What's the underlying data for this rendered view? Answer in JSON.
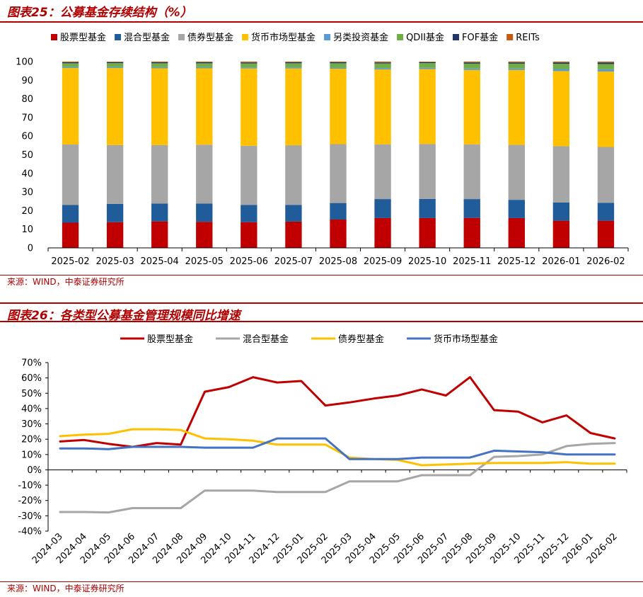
{
  "figure1": {
    "title": "图表25：公募基金存续结构（%）",
    "source": "来源：WIND，中泰证券研究所"
  },
  "figure2": {
    "title": "图表26：各类型公募基金管理规模同比增速",
    "source": "来源：WIND，中泰证券研究所"
  },
  "chart_data": [
    {
      "type": "bar",
      "stacked": true,
      "title": "图表25：公募基金存续结构（%）",
      "xlabel": "",
      "ylabel": "",
      "ylim": [
        0,
        100
      ],
      "yticks": [
        "0",
        "10",
        "20",
        "30",
        "40",
        "50",
        "60",
        "70",
        "80",
        "90",
        "100"
      ],
      "categories": [
        "2025-02",
        "2025-03",
        "2025-04",
        "2025-05",
        "2025-06",
        "2025-07",
        "2025-08",
        "2025-09",
        "2025-10",
        "2025-11",
        "2025-12",
        "2026-01",
        "2026-02"
      ],
      "legend_position": "top",
      "series": [
        {
          "name": "股票型基金",
          "color": "#C00000",
          "values": [
            13.5,
            13.8,
            14.2,
            14.0,
            13.8,
            14.1,
            15.2,
            16.0,
            16.0,
            16.1,
            16.0,
            14.6,
            14.6
          ]
        },
        {
          "name": "混合型基金",
          "color": "#1F5C99",
          "values": [
            9.5,
            9.8,
            9.6,
            9.8,
            9.2,
            9.0,
            8.9,
            10.2,
            10.3,
            10.1,
            9.8,
            9.8,
            9.6
          ]
        },
        {
          "name": "债券型基金",
          "color": "#A6A6A6",
          "values": [
            32.5,
            31.6,
            31.4,
            31.6,
            31.8,
            32.0,
            31.6,
            29.4,
            29.5,
            29.4,
            29.5,
            30.2,
            30.0
          ]
        },
        {
          "name": "货币市场型基金",
          "color": "#FFC000",
          "values": [
            41.0,
            41.3,
            41.2,
            41.0,
            41.5,
            41.2,
            40.5,
            40.2,
            40.2,
            39.9,
            40.2,
            40.3,
            40.5
          ]
        },
        {
          "name": "另类投资基金",
          "color": "#5B9BD5",
          "values": [
            0.6,
            0.6,
            0.6,
            0.6,
            0.6,
            0.6,
            0.6,
            0.7,
            0.7,
            0.8,
            0.8,
            1.1,
            1.2
          ]
        },
        {
          "name": "QDII基金",
          "color": "#70AD47",
          "values": [
            2.0,
            2.1,
            2.1,
            2.1,
            2.1,
            2.2,
            2.3,
            2.5,
            2.5,
            2.6,
            2.6,
            2.8,
            2.8
          ]
        },
        {
          "name": "FOF基金",
          "color": "#203864",
          "values": [
            0.5,
            0.5,
            0.5,
            0.5,
            0.5,
            0.5,
            0.5,
            0.5,
            0.5,
            0.6,
            0.6,
            0.7,
            0.8
          ]
        },
        {
          "name": "REITs",
          "color": "#C55A11",
          "values": [
            0.4,
            0.3,
            0.4,
            0.4,
            0.5,
            0.4,
            0.4,
            0.5,
            0.3,
            0.5,
            0.5,
            0.5,
            0.5
          ]
        }
      ]
    },
    {
      "type": "line",
      "title": "图表26：各类型公募基金管理规模同比增速",
      "xlabel": "",
      "ylabel": "",
      "ylim": [
        -40,
        70
      ],
      "yticks": [
        "-40%",
        "-30%",
        "-20%",
        "-10%",
        "0%",
        "10%",
        "20%",
        "30%",
        "40%",
        "50%",
        "60%",
        "70%"
      ],
      "categories": [
        "2024-03",
        "2024-04",
        "2024-05",
        "2024-06",
        "2024-07",
        "2024-08",
        "2024-09",
        "2024-10",
        "2024-11",
        "2024-12",
        "2025-01",
        "2025-02",
        "2025-03",
        "2025-04",
        "2025-05",
        "2025-06",
        "2025-07",
        "2025-08",
        "2025-09",
        "2025-10",
        "2025-11",
        "2025-12",
        "2026-01",
        "2026-02"
      ],
      "legend_position": "top",
      "series": [
        {
          "name": "股票型基金",
          "color": "#C00000",
          "values": [
            18.5,
            19.5,
            17.0,
            15.0,
            17.5,
            16.5,
            51.0,
            54.0,
            60.5,
            57.0,
            58.0,
            42.0,
            44.0,
            46.5,
            48.5,
            52.5,
            48.5,
            60.5,
            39.0,
            38.0,
            31.0,
            35.5,
            24.0,
            20.5
          ]
        },
        {
          "name": "混合型基金",
          "color": "#A6A6A6",
          "values": [
            -27.5,
            -27.5,
            -27.8,
            -25.0,
            -25.0,
            -25.0,
            -13.5,
            -13.5,
            -13.5,
            -14.5,
            -14.5,
            -14.5,
            -7.5,
            -7.5,
            -7.5,
            -3.5,
            -3.5,
            -3.5,
            8.5,
            9.0,
            10.0,
            15.5,
            17.0,
            17.5
          ]
        },
        {
          "name": "债券型基金",
          "color": "#FFC000",
          "values": [
            22.0,
            23.0,
            23.5,
            26.5,
            26.5,
            26.0,
            20.5,
            20.0,
            19.0,
            16.5,
            16.5,
            16.5,
            8.0,
            7.0,
            6.5,
            3.0,
            3.5,
            4.0,
            4.5,
            4.5,
            4.5,
            5.0,
            4.0,
            4.0
          ]
        },
        {
          "name": "货币市场型基金",
          "color": "#4472C4",
          "values": [
            14.0,
            14.0,
            13.5,
            15.0,
            15.0,
            15.0,
            14.5,
            14.5,
            14.5,
            20.5,
            20.5,
            20.5,
            7.0,
            7.0,
            7.0,
            8.0,
            8.0,
            8.0,
            12.5,
            12.0,
            11.5,
            10.0,
            10.0,
            10.0
          ]
        }
      ]
    }
  ]
}
